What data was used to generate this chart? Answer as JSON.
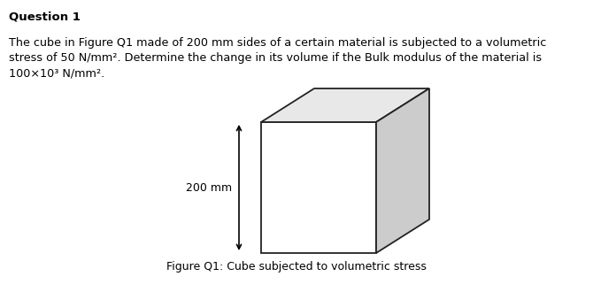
{
  "title": "Question 1",
  "paragraph": "The cube in Figure Q1 made of 200 mm sides of a certain material is subjected to a volumetric\nstress of 50 N/mm². Determine the change in its volume if the Bulk modulus of the material is\n100×10³ N/mm².",
  "label_200mm": "200 mm",
  "caption": "Figure Q1: Cube subjected to volumetric stress",
  "bg_color": "#ffffff",
  "text_color": "#000000",
  "cube_face_color": "#ffffff",
  "cube_side_color": "#cccccc",
  "cube_top_color": "#e8e8e8",
  "cube_edge_color": "#222222",
  "arrow_color": "#000000",
  "fig_width": 6.7,
  "fig_height": 3.21,
  "dpi": 100
}
